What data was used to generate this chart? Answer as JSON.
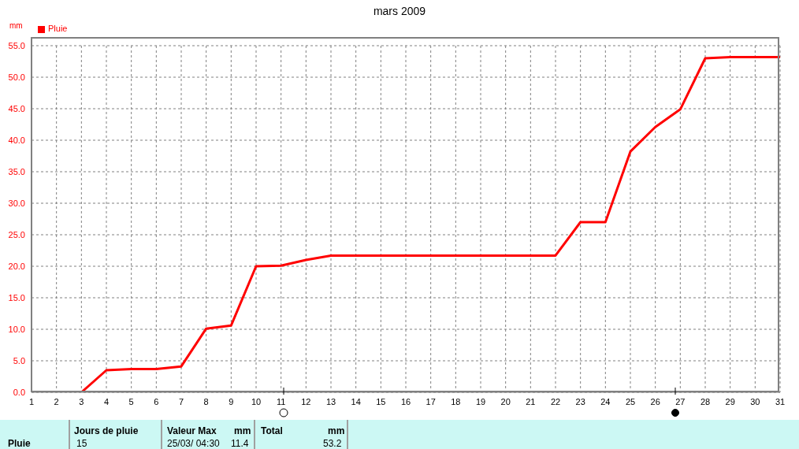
{
  "chart_data": {
    "type": "line",
    "title": "mars 2009",
    "ylabel": "mm",
    "x": [
      3,
      4,
      5,
      6,
      7,
      8,
      9,
      10,
      11,
      12,
      13,
      14,
      15,
      16,
      17,
      18,
      19,
      20,
      21,
      22,
      23,
      24,
      25,
      26,
      27,
      28,
      29,
      30,
      31
    ],
    "series": [
      {
        "name": "Pluie",
        "color": "#ff0000",
        "values": [
          0,
          3.5,
          3.7,
          3.7,
          4.1,
          10.1,
          10.6,
          20.0,
          20.1,
          21.0,
          21.7,
          21.7,
          21.7,
          21.7,
          21.7,
          21.7,
          21.7,
          21.7,
          21.7,
          21.7,
          27.0,
          27.0,
          38.2,
          42.1,
          44.9,
          53.0,
          53.2,
          53.2,
          53.2
        ]
      }
    ],
    "xlim": [
      1,
      31
    ],
    "xticks": [
      1,
      2,
      3,
      4,
      5,
      6,
      7,
      8,
      9,
      10,
      11,
      12,
      13,
      14,
      15,
      16,
      17,
      18,
      19,
      20,
      21,
      22,
      23,
      24,
      25,
      26,
      27,
      28,
      29,
      30,
      31
    ],
    "ylim": [
      0,
      55
    ],
    "yticks": [
      {
        "value": 0,
        "label": "0.0"
      },
      {
        "value": 5,
        "label": "5.0"
      },
      {
        "value": 10,
        "label": "10.0"
      },
      {
        "value": 15,
        "label": "15.0"
      },
      {
        "value": 20,
        "label": "20.0"
      },
      {
        "value": 25,
        "label": "25.0"
      },
      {
        "value": 30,
        "label": "30.0"
      },
      {
        "value": 35,
        "label": "35.0"
      },
      {
        "value": 40,
        "label": "40.0"
      },
      {
        "value": 45,
        "label": "45.0"
      },
      {
        "value": 50,
        "label": "50.0"
      },
      {
        "value": 55,
        "label": "55.0"
      }
    ],
    "grid": true,
    "legend": "top left",
    "marker": "none",
    "line_style": "solid",
    "annotations": [
      "Pluie",
      "Jours de pluie",
      "15",
      "Valeur Max",
      "mm",
      "25/03/ 04:30",
      "11.4",
      "Total",
      "mm",
      "53.2"
    ]
  }
}
